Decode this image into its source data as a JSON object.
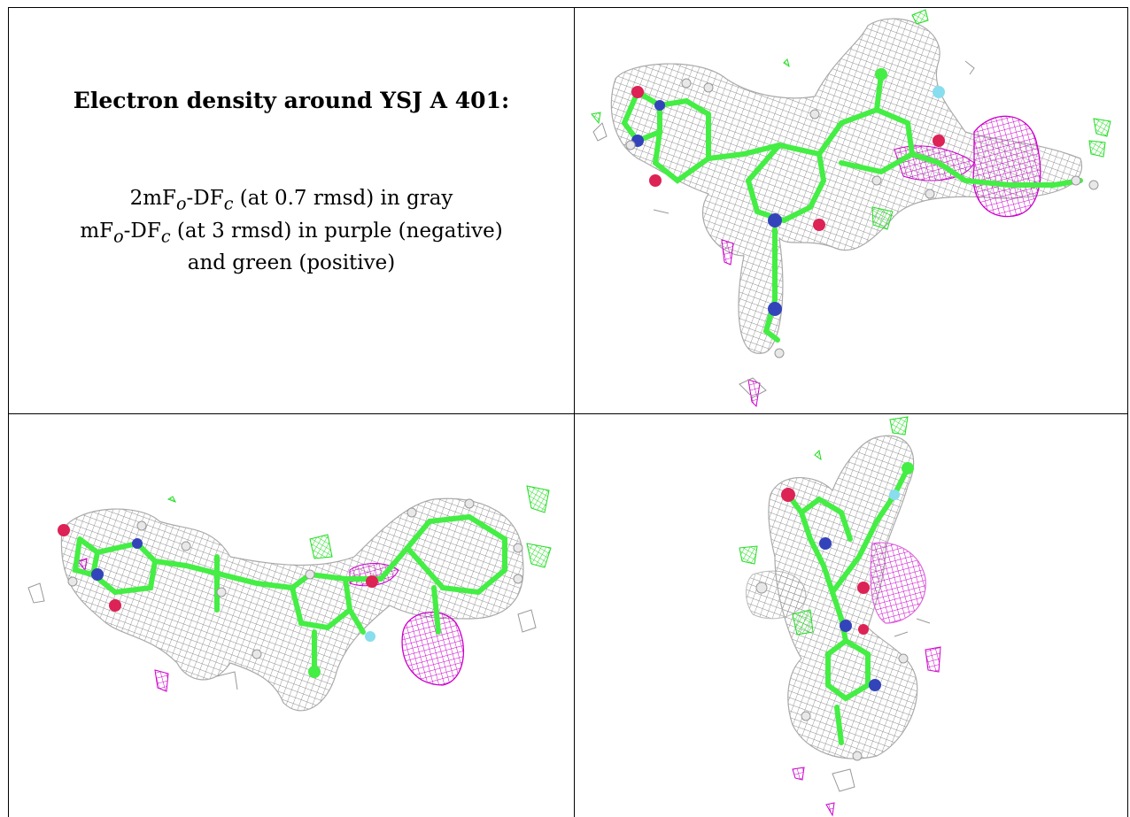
{
  "text": {
    "title": "Electron density around YSJ A 401:",
    "line1": {
      "pre": "2mF",
      "sub1": "o",
      "mid": "-DF",
      "sub2": "c",
      "post": " (at 0.7 rmsd) in gray"
    },
    "line2": {
      "pre": "mF",
      "sub1": "o",
      "mid": "-DF",
      "sub2": "c",
      "post": " (at 3 rmsd) in purple (negative)"
    },
    "line3": "and green (positive)"
  },
  "colors": {
    "mesh_gray": "#9a9a9a",
    "mesh_purple": "#cc00cc",
    "mesh_green": "#22dd22",
    "carbon": "#44ee44",
    "nitrogen": "#3344bb",
    "oxygen": "#dd2255",
    "fluorine": "#88ddee",
    "hydrogen": "#e8e8e8"
  }
}
